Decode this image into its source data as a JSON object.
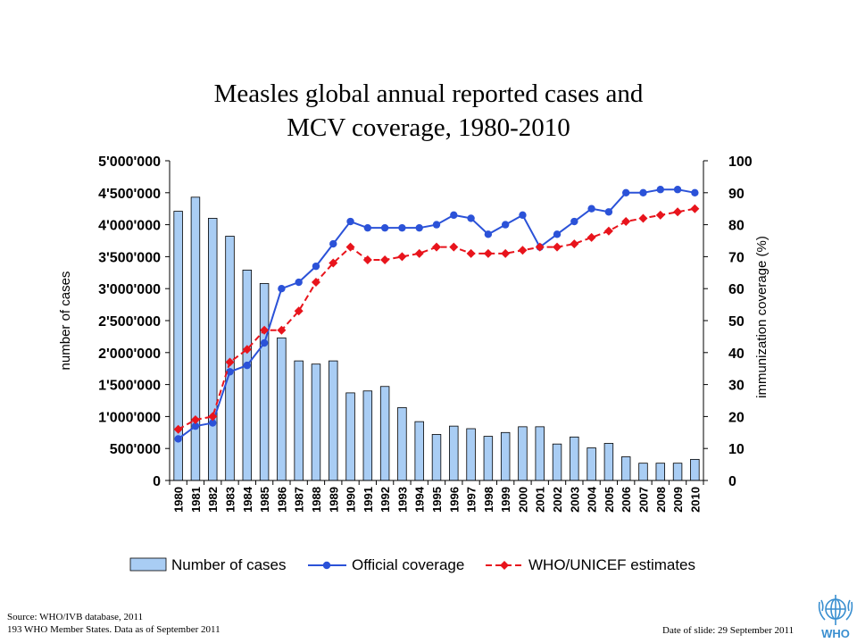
{
  "title_lines": [
    "Measles global annual reported cases and",
    "MCV coverage, 1980-2010"
  ],
  "footer": {
    "source_line1": "Source: WHO/IVB database, 2011",
    "source_line2": "193 WHO Member States. Data as of September 2011",
    "slide_date": "Date of slide: 29 September 2011"
  },
  "logo": {
    "icon": "who-emblem-icon",
    "text": "WHO",
    "color": "#3a8fd0"
  },
  "chart_data": {
    "type": "bar",
    "title": "Measles global annual reported cases and MCV coverage, 1980-2010",
    "categories": [
      "1980",
      "1981",
      "1982",
      "1983",
      "1984",
      "1985",
      "1986",
      "1987",
      "1988",
      "1989",
      "1990",
      "1991",
      "1992",
      "1993",
      "1994",
      "1995",
      "1996",
      "1997",
      "1998",
      "1999",
      "2000",
      "2001",
      "2002",
      "2003",
      "2004",
      "2005",
      "2006",
      "2007",
      "2008",
      "2009",
      "2010"
    ],
    "ylabel": "number of cases",
    "y2label": "immunization coverage (%)",
    "ylim": [
      0,
      5000000
    ],
    "y2lim": [
      0,
      100
    ],
    "y_ticks": [
      "0",
      "500'000",
      "1'000'000",
      "1'500'000",
      "2'000'000",
      "2'500'000",
      "3'000'000",
      "3'500'000",
      "4'000'000",
      "4'500'000",
      "5'000'000"
    ],
    "y2_ticks": [
      "0",
      "10",
      "20",
      "30",
      "40",
      "50",
      "60",
      "70",
      "80",
      "90",
      "100"
    ],
    "legend_position": "bottom",
    "grid": false,
    "series": [
      {
        "name": "Number of cases",
        "type": "bar",
        "axis": "left",
        "color": "#a9cdf4",
        "border": "#000000",
        "values": [
          4210000,
          4430000,
          4100000,
          3820000,
          3290000,
          3080000,
          2230000,
          1870000,
          1820000,
          1870000,
          1370000,
          1400000,
          1470000,
          1140000,
          920000,
          720000,
          850000,
          810000,
          690000,
          750000,
          840000,
          840000,
          570000,
          680000,
          510000,
          580000,
          370000,
          270000,
          270000,
          270000,
          330000
        ]
      },
      {
        "name": "Official coverage",
        "type": "line",
        "axis": "right",
        "color": "#2b52d8",
        "marker": "circle",
        "values": [
          13,
          17,
          18,
          34,
          36,
          43,
          60,
          62,
          67,
          74,
          81,
          79,
          79,
          79,
          79,
          80,
          83,
          82,
          77,
          80,
          83,
          73,
          77,
          81,
          85,
          84,
          90,
          90,
          91,
          91,
          90
        ]
      },
      {
        "name": "WHO/UNICEF estimates",
        "type": "line",
        "axis": "right",
        "color": "#e8141c",
        "marker": "diamond",
        "dashed": true,
        "values": [
          16,
          19,
          20,
          37,
          41,
          47,
          47,
          53,
          62,
          68,
          73,
          69,
          69,
          70,
          71,
          73,
          73,
          71,
          71,
          71,
          72,
          73,
          73,
          74,
          76,
          78,
          81,
          82,
          83,
          84,
          85
        ]
      }
    ]
  }
}
